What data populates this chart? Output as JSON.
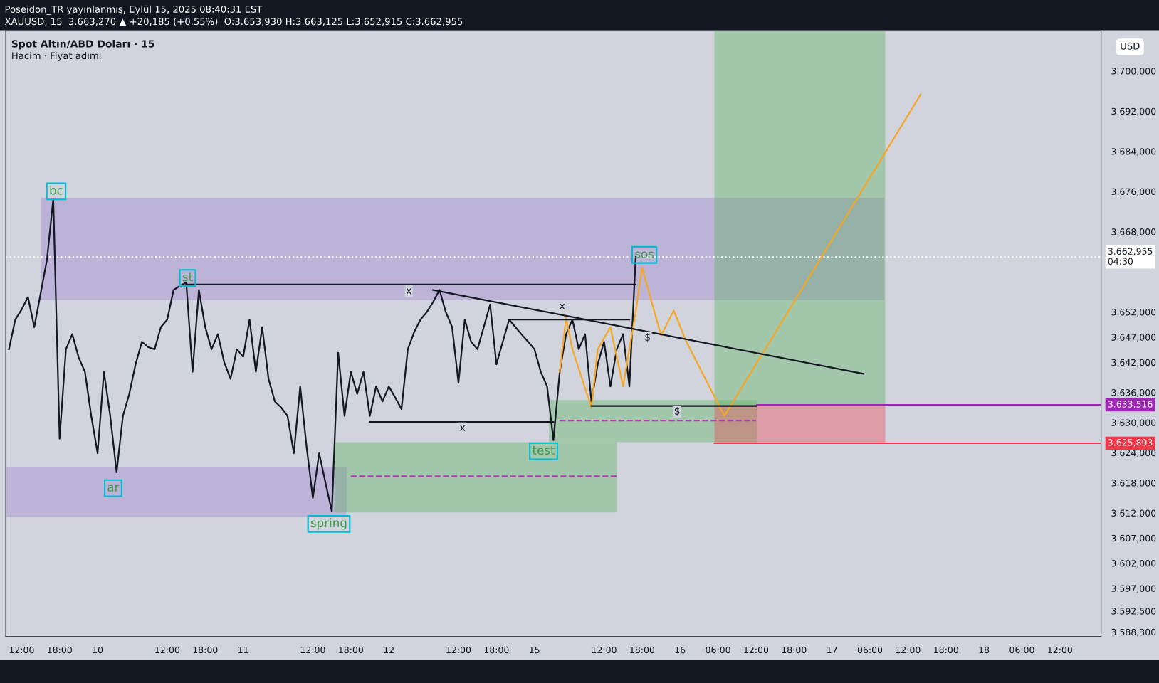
{
  "chart_data": {
    "type": "line",
    "title": "Spot Altın/ABD Doları · 15",
    "subtitle": "Hacim · Fiyat adımı",
    "annotations": [
      "Poseidon_TR yayınlanmış, Eylül 15, 2025 08:40:31 EST",
      "XAUUSD, 15  3.663,270 ▲ +20,185 (+0.55%)  O:3.653,930 H:3.663,125 L:3.652,915 C:3.662,955",
      "USD",
      "bc",
      "st",
      "ar",
      "spring",
      "test",
      "sos",
      "x",
      "x",
      "x",
      "$",
      "$"
    ],
    "categories": [
      null,
      null,
      "12:00",
      null,
      null,
      null,
      null,
      null,
      "18:00",
      null,
      null,
      null,
      null,
      null,
      "10",
      null,
      null,
      null,
      null,
      null,
      null,
      null,
      null,
      null,
      null,
      "12:00",
      null,
      null,
      null,
      null,
      null,
      "18:00",
      null,
      null,
      null,
      null,
      null,
      "11",
      null,
      null,
      null,
      null,
      null,
      null,
      null,
      null,
      null,
      null,
      "12:00",
      null,
      null,
      null,
      null,
      null,
      "18:00",
      null,
      null,
      null,
      null,
      null,
      "12",
      null,
      null,
      null,
      null,
      null,
      null,
      null,
      null,
      null,
      null,
      "12:00",
      null,
      null,
      null,
      null,
      null,
      "18:00",
      null,
      null,
      null,
      null,
      null,
      "15",
      null,
      null,
      null,
      null,
      null,
      null,
      null,
      null,
      null,
      null,
      "12:00",
      null,
      null,
      null,
      null,
      null,
      "18:00",
      null,
      null,
      null,
      null,
      null,
      "16",
      null,
      null,
      null,
      null,
      null,
      "06:00",
      null,
      null,
      null,
      null,
      null,
      "12:00",
      null,
      null,
      null,
      null,
      null,
      "18:00",
      null,
      null,
      null,
      null,
      null,
      "17",
      null,
      null,
      null,
      null,
      null,
      "06:00",
      null,
      null,
      null,
      null,
      null,
      "12:00",
      null,
      null,
      null,
      null,
      null,
      "18:00",
      null,
      null,
      null,
      null,
      null,
      "18",
      null,
      null,
      null,
      null,
      null,
      "06:00",
      null,
      null,
      null,
      null,
      null,
      "12:00",
      null,
      null,
      null,
      null,
      null,
      null
    ],
    "ylim": [
      3587.4,
      3708.0
    ],
    "yticks": [
      {
        "value": 3700,
        "label": "3.700,000"
      },
      {
        "value": 3692,
        "label": "3.692,000"
      },
      {
        "value": 3684,
        "label": "3.684,000"
      },
      {
        "value": 3676,
        "label": "3.676,000"
      },
      {
        "value": 3668,
        "label": "3.668,000"
      },
      {
        "value": 3652,
        "label": "3.652,000"
      },
      {
        "value": 3647,
        "label": "3.647,000"
      },
      {
        "value": 3642,
        "label": "3.642,000"
      },
      {
        "value": 3636,
        "label": "3.636,000"
      },
      {
        "value": 3630,
        "label": "3.630,000"
      },
      {
        "value": 3624,
        "label": "3.624,000"
      },
      {
        "value": 3618,
        "label": "3.618,000"
      },
      {
        "value": 3612,
        "label": "3.612,000"
      },
      {
        "value": 3607,
        "label": "3.607,000"
      },
      {
        "value": 3602,
        "label": "3.602,000"
      },
      {
        "value": 3597,
        "label": "3.597,000"
      },
      {
        "value": 3592.5,
        "label": "3.592,500"
      },
      {
        "value": 3588.3,
        "label": "3.588,300"
      }
    ],
    "grid": false,
    "series": [
      {
        "color": "#131722",
        "values": [
          3644.6,
          3650.5,
          3652.5,
          3655.0,
          3649.0,
          3655.7,
          3662.4,
          3674.5,
          3626.8,
          3644.6,
          3647.6,
          3643.0,
          3640.1,
          3631.3,
          3623.9,
          3640.1,
          3631.3,
          3620.1,
          3631.3,
          3635.7,
          3641.6,
          3646.1,
          3645.0,
          3644.6,
          3649.0,
          3650.5,
          3656.4,
          3657.2,
          3657.9,
          3640.1,
          3656.4,
          3649.0,
          3644.6,
          3647.6,
          3642.0,
          3638.7,
          3644.6,
          3643.1,
          3650.5,
          3640.1,
          3649.0,
          3638.7,
          3634.2,
          3633.0,
          3631.3,
          3623.9,
          3637.2,
          3625.3,
          3615.0,
          3623.9,
          3618.0,
          3612.3,
          3643.9,
          3631.3,
          3640.1,
          3635.7,
          3640.1,
          3631.3,
          3637.2,
          3634.2,
          3637.2,
          3635.0,
          3632.7,
          3644.6,
          3648.0,
          3650.5,
          3652.0,
          3654.0,
          3656.4,
          3652.0,
          3649.0,
          3637.9,
          3650.5,
          3646.1,
          3644.6,
          3649.0,
          3653.5,
          3641.6,
          3646.1,
          3650.5,
          3649.0,
          3647.5,
          3646.1,
          3644.6,
          3640.1,
          3637.2,
          3626.5,
          3640.1,
          3647.6,
          3650.5,
          3644.6,
          3647.6,
          3634.2,
          3641.6,
          3646.1,
          3637.2,
          3644.6,
          3647.6,
          3637.2,
          3663.0,
          null,
          null,
          null,
          null,
          null,
          null,
          null,
          null,
          null,
          null,
          null,
          null,
          null,
          null,
          null,
          null,
          null,
          null,
          null,
          null,
          null,
          null,
          null,
          null,
          null,
          null,
          null,
          null,
          null,
          null,
          null,
          null,
          null,
          null,
          null,
          null,
          null,
          null,
          null,
          null,
          null,
          null,
          null,
          null,
          null,
          null,
          null,
          null,
          null,
          null,
          null,
          null,
          null,
          null,
          null,
          null,
          null,
          null,
          null,
          null,
          null,
          null,
          null,
          null,
          null,
          null,
          null,
          null,
          null,
          null,
          null,
          null,
          null
        ]
      },
      {
        "color": "#f5a623",
        "values": [
          null,
          null,
          null,
          null,
          null,
          null,
          null,
          null,
          null,
          null,
          null,
          null,
          null,
          null,
          null,
          null,
          null,
          null,
          null,
          null,
          null,
          null,
          null,
          null,
          null,
          null,
          null,
          null,
          null,
          null,
          null,
          null,
          null,
          null,
          null,
          null,
          null,
          null,
          null,
          null,
          null,
          null,
          null,
          null,
          null,
          null,
          null,
          null,
          null,
          null,
          null,
          null,
          null,
          null,
          null,
          null,
          null,
          null,
          null,
          null,
          null,
          null,
          null,
          null,
          null,
          null,
          null,
          null,
          null,
          null,
          null,
          null,
          null,
          null,
          null,
          null,
          null,
          null,
          null,
          null,
          null,
          null,
          null,
          null,
          null,
          null,
          null,
          3640.1,
          3650.8,
          3644.6,
          null,
          null,
          3633.0,
          3644.6,
          null,
          3649.0,
          null,
          3637.2,
          null,
          3652.0,
          3660.9,
          null,
          null,
          3647.3,
          null,
          3652.3,
          null,
          3646.1,
          null,
          null,
          null,
          null,
          null,
          3631.3,
          null,
          null,
          null,
          null,
          null,
          null,
          null,
          null,
          null,
          null,
          null,
          null,
          null,
          null,
          null,
          null,
          null,
          null,
          null,
          null,
          null,
          null,
          null,
          null,
          null,
          null,
          null,
          null,
          null,
          null,
          3695.3,
          null,
          null,
          null,
          null,
          null,
          null,
          null,
          null,
          null,
          null,
          null,
          null,
          null,
          null,
          null,
          null,
          null,
          null,
          null,
          null,
          null,
          null,
          null,
          null,
          null,
          null,
          null,
          null
        ]
      },
      {
        "color": "#131722",
        "values": [
          null,
          null,
          null,
          null,
          null,
          null,
          null,
          null,
          null,
          null,
          null,
          null,
          null,
          null,
          null,
          null,
          null,
          null,
          null,
          null,
          null,
          null,
          null,
          null,
          null,
          null,
          null,
          null,
          null,
          null,
          null,
          null,
          null,
          null,
          null,
          null,
          null,
          null,
          null,
          null,
          null,
          null,
          null,
          null,
          null,
          null,
          null,
          null,
          null,
          null,
          null,
          null,
          null,
          null,
          null,
          null,
          null,
          null,
          null,
          null,
          null,
          null,
          null,
          null,
          null,
          null,
          null,
          3656.4,
          null,
          null,
          null,
          null,
          null,
          null,
          null,
          null,
          null,
          null,
          null,
          null,
          null,
          null,
          null,
          null,
          null,
          null,
          null,
          null,
          null,
          null,
          null,
          null,
          null,
          null,
          null,
          null,
          null,
          null,
          null,
          null,
          null,
          null,
          null,
          null,
          null,
          null,
          null,
          null,
          null,
          null,
          null,
          null,
          null,
          null,
          null,
          null,
          null,
          null,
          null,
          null,
          null,
          null,
          null,
          null,
          null,
          null,
          null,
          null,
          null,
          null,
          null,
          null,
          null,
          null,
          null,
          3639.7,
          null,
          null,
          null,
          null,
          null,
          null,
          null,
          null,
          null,
          null,
          null,
          null,
          null,
          null,
          null,
          null,
          null,
          null,
          null,
          null,
          null,
          null,
          null,
          null,
          null,
          null,
          null,
          null,
          null,
          null,
          null,
          null,
          null,
          null,
          null,
          null,
          null
        ]
      },
      {
        "color": "#131722",
        "values": [
          null,
          null,
          null,
          null,
          null,
          null,
          null,
          null,
          null,
          null,
          null,
          null,
          null,
          null,
          null,
          null,
          null,
          null,
          null,
          null,
          null,
          null,
          null,
          null,
          null,
          null,
          null,
          null,
          3657.5,
          null,
          null,
          null,
          null,
          null,
          null,
          null,
          null,
          null,
          null,
          null,
          null,
          null,
          null,
          null,
          null,
          null,
          null,
          null,
          null,
          null,
          null,
          null,
          null,
          null,
          null,
          null,
          null,
          null,
          null,
          null,
          null,
          null,
          null,
          null,
          null,
          null,
          null,
          null,
          null,
          null,
          null,
          null,
          null,
          null,
          null,
          null,
          null,
          null,
          null,
          null,
          null,
          null,
          null,
          null,
          null,
          null,
          null,
          null,
          null,
          null,
          null,
          null,
          null,
          null,
          null,
          null,
          null,
          null,
          null,
          3657.5,
          null,
          null,
          null,
          null,
          null,
          null,
          null,
          null,
          null,
          null,
          null,
          null,
          null,
          null,
          null,
          null,
          null,
          null,
          null,
          null,
          null,
          null,
          null,
          null,
          null,
          null,
          null,
          null,
          null,
          null,
          null,
          null,
          null,
          null,
          null,
          null,
          null,
          null,
          null,
          null,
          null,
          null,
          null,
          null,
          null,
          null,
          null,
          null,
          null,
          null,
          null,
          null,
          null,
          null,
          null,
          null,
          null,
          null,
          null,
          null,
          null,
          null,
          null,
          null,
          null,
          null,
          null,
          null,
          null,
          null,
          null,
          null,
          null
        ]
      },
      {
        "color": "#131722",
        "values": [
          null,
          null,
          null,
          null,
          null,
          null,
          null,
          null,
          null,
          null,
          null,
          null,
          null,
          null,
          null,
          null,
          null,
          null,
          null,
          null,
          null,
          null,
          null,
          null,
          null,
          null,
          null,
          null,
          null,
          null,
          null,
          null,
          null,
          null,
          null,
          null,
          null,
          null,
          null,
          null,
          null,
          null,
          null,
          null,
          null,
          null,
          null,
          null,
          null,
          null,
          null,
          null,
          null,
          null,
          null,
          null,
          null,
          null,
          null,
          null,
          null,
          null,
          null,
          null,
          null,
          null,
          null,
          null,
          null,
          null,
          null,
          null,
          null,
          null,
          null,
          null,
          null,
          null,
          null,
          3650.5,
          null,
          null,
          null,
          null,
          null,
          null,
          null,
          null,
          null,
          null,
          null,
          null,
          null,
          null,
          null,
          null,
          null,
          null,
          3650.5,
          null,
          null,
          null,
          null,
          null,
          null,
          null,
          null,
          null,
          null,
          null,
          null,
          null,
          null,
          null,
          null,
          null,
          null,
          null,
          null,
          null,
          null,
          null,
          null,
          null,
          null,
          null,
          null,
          null,
          null,
          null,
          null,
          null,
          null,
          null,
          null,
          null,
          null,
          null,
          null,
          null,
          null,
          null,
          null,
          null,
          null,
          null,
          null,
          null,
          null,
          null,
          null,
          null,
          null,
          null,
          null,
          null,
          null,
          null,
          null,
          null,
          null,
          null,
          null,
          null,
          null,
          null,
          null,
          null,
          null,
          null,
          null,
          null,
          null
        ]
      },
      {
        "color": "#131722",
        "values": [
          null,
          null,
          null,
          null,
          null,
          null,
          null,
          null,
          null,
          null,
          null,
          null,
          null,
          null,
          null,
          null,
          null,
          null,
          null,
          null,
          null,
          null,
          null,
          null,
          null,
          null,
          null,
          null,
          null,
          null,
          null,
          null,
          null,
          null,
          null,
          null,
          null,
          null,
          null,
          null,
          null,
          null,
          null,
          null,
          null,
          null,
          null,
          null,
          null,
          null,
          null,
          null,
          null,
          null,
          null,
          null,
          null,
          3630.1,
          null,
          null,
          null,
          null,
          null,
          null,
          null,
          null,
          null,
          null,
          null,
          null,
          null,
          null,
          null,
          null,
          null,
          null,
          null,
          null,
          null,
          null,
          null,
          null,
          null,
          null,
          null,
          null,
          3630.1,
          null,
          null,
          null,
          null,
          null,
          null,
          null,
          null,
          null,
          null,
          null,
          null,
          null,
          null,
          null,
          null,
          null,
          null,
          null,
          null,
          null,
          null,
          null,
          null,
          null,
          null,
          null,
          null,
          null,
          null,
          null,
          null,
          null,
          null,
          null,
          null,
          null,
          null,
          null,
          null,
          null,
          null,
          null,
          null,
          null,
          null,
          null,
          null,
          null,
          null,
          null,
          null,
          null,
          null,
          null,
          null,
          null,
          null,
          null,
          null,
          null,
          null,
          null,
          null,
          null,
          null,
          null,
          null,
          null,
          null,
          null,
          null,
          null,
          null,
          null,
          null,
          null,
          null,
          null,
          null,
          null,
          null,
          null,
          null,
          null,
          null
        ]
      },
      {
        "color": "#131722",
        "values": [
          null,
          null,
          null,
          null,
          null,
          null,
          null,
          null,
          null,
          null,
          null,
          null,
          null,
          null,
          null,
          null,
          null,
          null,
          null,
          null,
          null,
          null,
          null,
          null,
          null,
          null,
          null,
          null,
          null,
          null,
          null,
          null,
          null,
          null,
          null,
          null,
          null,
          null,
          null,
          null,
          null,
          null,
          null,
          null,
          null,
          null,
          null,
          null,
          null,
          null,
          null,
          null,
          null,
          null,
          null,
          null,
          null,
          null,
          null,
          null,
          null,
          null,
          null,
          null,
          null,
          null,
          null,
          null,
          null,
          null,
          null,
          null,
          null,
          null,
          null,
          null,
          null,
          null,
          null,
          null,
          null,
          null,
          null,
          null,
          null,
          null,
          null,
          null,
          null,
          null,
          null,
          null,
          3633.3,
          null,
          null,
          null,
          null,
          null,
          null,
          null,
          null,
          null,
          null,
          null,
          null,
          null,
          null,
          null,
          null,
          null,
          null,
          null,
          null,
          null,
          null,
          null,
          null,
          null,
          3633.3,
          null,
          null,
          null,
          null,
          null,
          null,
          null,
          null,
          null,
          null,
          null,
          null,
          null,
          null,
          null,
          null,
          null,
          null,
          null,
          null,
          null,
          null,
          null,
          null,
          null,
          null,
          null,
          null,
          null,
          null,
          null,
          null,
          null,
          null,
          null,
          null,
          null,
          null,
          null,
          null,
          null,
          null,
          null,
          null,
          null,
          null,
          null,
          null,
          null,
          null,
          null,
          null,
          null,
          null
        ]
      },
      {
        "color": "#b03ab8",
        "line_style": "dashed",
        "values": [
          null,
          null,
          null,
          null,
          null,
          null,
          null,
          null,
          null,
          null,
          null,
          null,
          null,
          null,
          null,
          null,
          null,
          null,
          null,
          null,
          null,
          null,
          null,
          null,
          null,
          null,
          null,
          null,
          null,
          null,
          null,
          null,
          null,
          null,
          null,
          null,
          null,
          null,
          null,
          null,
          null,
          null,
          null,
          null,
          null,
          null,
          null,
          null,
          null,
          null,
          null,
          null,
          null,
          null,
          3619.3,
          null,
          null,
          null,
          null,
          null,
          null,
          null,
          null,
          null,
          null,
          null,
          null,
          null,
          null,
          null,
          null,
          null,
          null,
          null,
          null,
          null,
          null,
          null,
          null,
          null,
          null,
          null,
          null,
          null,
          null,
          null,
          null,
          null,
          null,
          null,
          null,
          null,
          null,
          null,
          null,
          null,
          3619.3,
          null,
          null,
          null,
          null,
          null,
          null,
          null,
          null,
          null,
          null,
          null,
          null,
          null,
          null,
          null,
          null,
          null,
          null,
          null,
          null,
          null,
          null,
          null,
          null,
          null,
          null,
          null,
          null,
          null,
          null,
          null,
          null,
          null,
          null,
          null,
          null,
          null,
          null,
          null,
          null,
          null,
          null,
          null,
          null,
          null,
          null,
          null,
          null,
          null,
          null,
          null,
          null,
          null,
          null,
          null,
          null,
          null,
          null,
          null,
          null,
          null,
          null,
          null,
          null,
          null,
          null,
          null,
          null,
          null,
          null,
          null,
          null,
          null,
          null,
          null,
          null
        ]
      },
      {
        "color": "#b03ab8",
        "line_style": "dashed",
        "values": [
          null,
          null,
          null,
          null,
          null,
          null,
          null,
          null,
          null,
          null,
          null,
          null,
          null,
          null,
          null,
          null,
          null,
          null,
          null,
          null,
          null,
          null,
          null,
          null,
          null,
          null,
          null,
          null,
          null,
          null,
          null,
          null,
          null,
          null,
          null,
          null,
          null,
          null,
          null,
          null,
          null,
          null,
          null,
          null,
          null,
          null,
          null,
          null,
          null,
          null,
          null,
          null,
          null,
          null,
          null,
          null,
          null,
          null,
          null,
          null,
          null,
          null,
          null,
          null,
          null,
          null,
          null,
          null,
          null,
          null,
          null,
          null,
          null,
          null,
          null,
          null,
          null,
          null,
          null,
          null,
          null,
          null,
          null,
          null,
          null,
          null,
          null,
          3630.4,
          null,
          null,
          null,
          null,
          null,
          null,
          null,
          null,
          null,
          null,
          null,
          null,
          null,
          null,
          null,
          null,
          null,
          null,
          null,
          null,
          null,
          null,
          null,
          null,
          null,
          null,
          null,
          null,
          null,
          null,
          3630.4,
          null,
          null,
          null,
          null,
          null,
          null,
          null,
          null,
          null,
          null,
          null,
          null,
          null,
          null,
          null,
          null,
          null,
          null,
          null,
          null,
          null,
          null,
          null,
          null,
          null,
          null,
          null,
          null,
          null,
          null,
          null,
          null,
          null,
          null,
          null,
          null,
          null,
          null,
          null,
          null,
          null,
          null,
          null,
          null,
          null,
          null,
          null,
          null,
          null,
          null,
          null,
          null,
          null,
          null
        ]
      }
    ],
    "bands": [
      {
        "axis": "y",
        "from": 3654.4,
        "to": 3674.7,
        "color": "#9575cd"
      },
      {
        "axis": "y",
        "from": 3611.3,
        "to": 3621.2,
        "color": "#9575cd"
      },
      {
        "axis": "y",
        "from": 3612.1,
        "to": 3626.1,
        "color": "#4caf50"
      },
      {
        "axis": "y",
        "from": 3626.1,
        "to": 3634.5,
        "color": "#4caf50"
      },
      {
        "axis": "y",
        "from": 3633.516,
        "to": 3708.0,
        "color": "#4caf50"
      },
      {
        "axis": "y",
        "from": 3625.893,
        "to": 3633.516,
        "color": "#f23645"
      }
    ],
    "ref_lines": [
      {
        "axis": "y",
        "value": 3662.955,
        "label": "3.662,955\n04:30",
        "color": "#ffffff",
        "line_style": "dotted"
      },
      {
        "axis": "y",
        "value": 3633.516,
        "label": "3.633,516",
        "color": "#9c27b0",
        "line_style": "solid"
      },
      {
        "axis": "y",
        "value": 3625.893,
        "label": "3.625,893",
        "color": "#f23645",
        "line_style": "solid"
      }
    ]
  }
}
